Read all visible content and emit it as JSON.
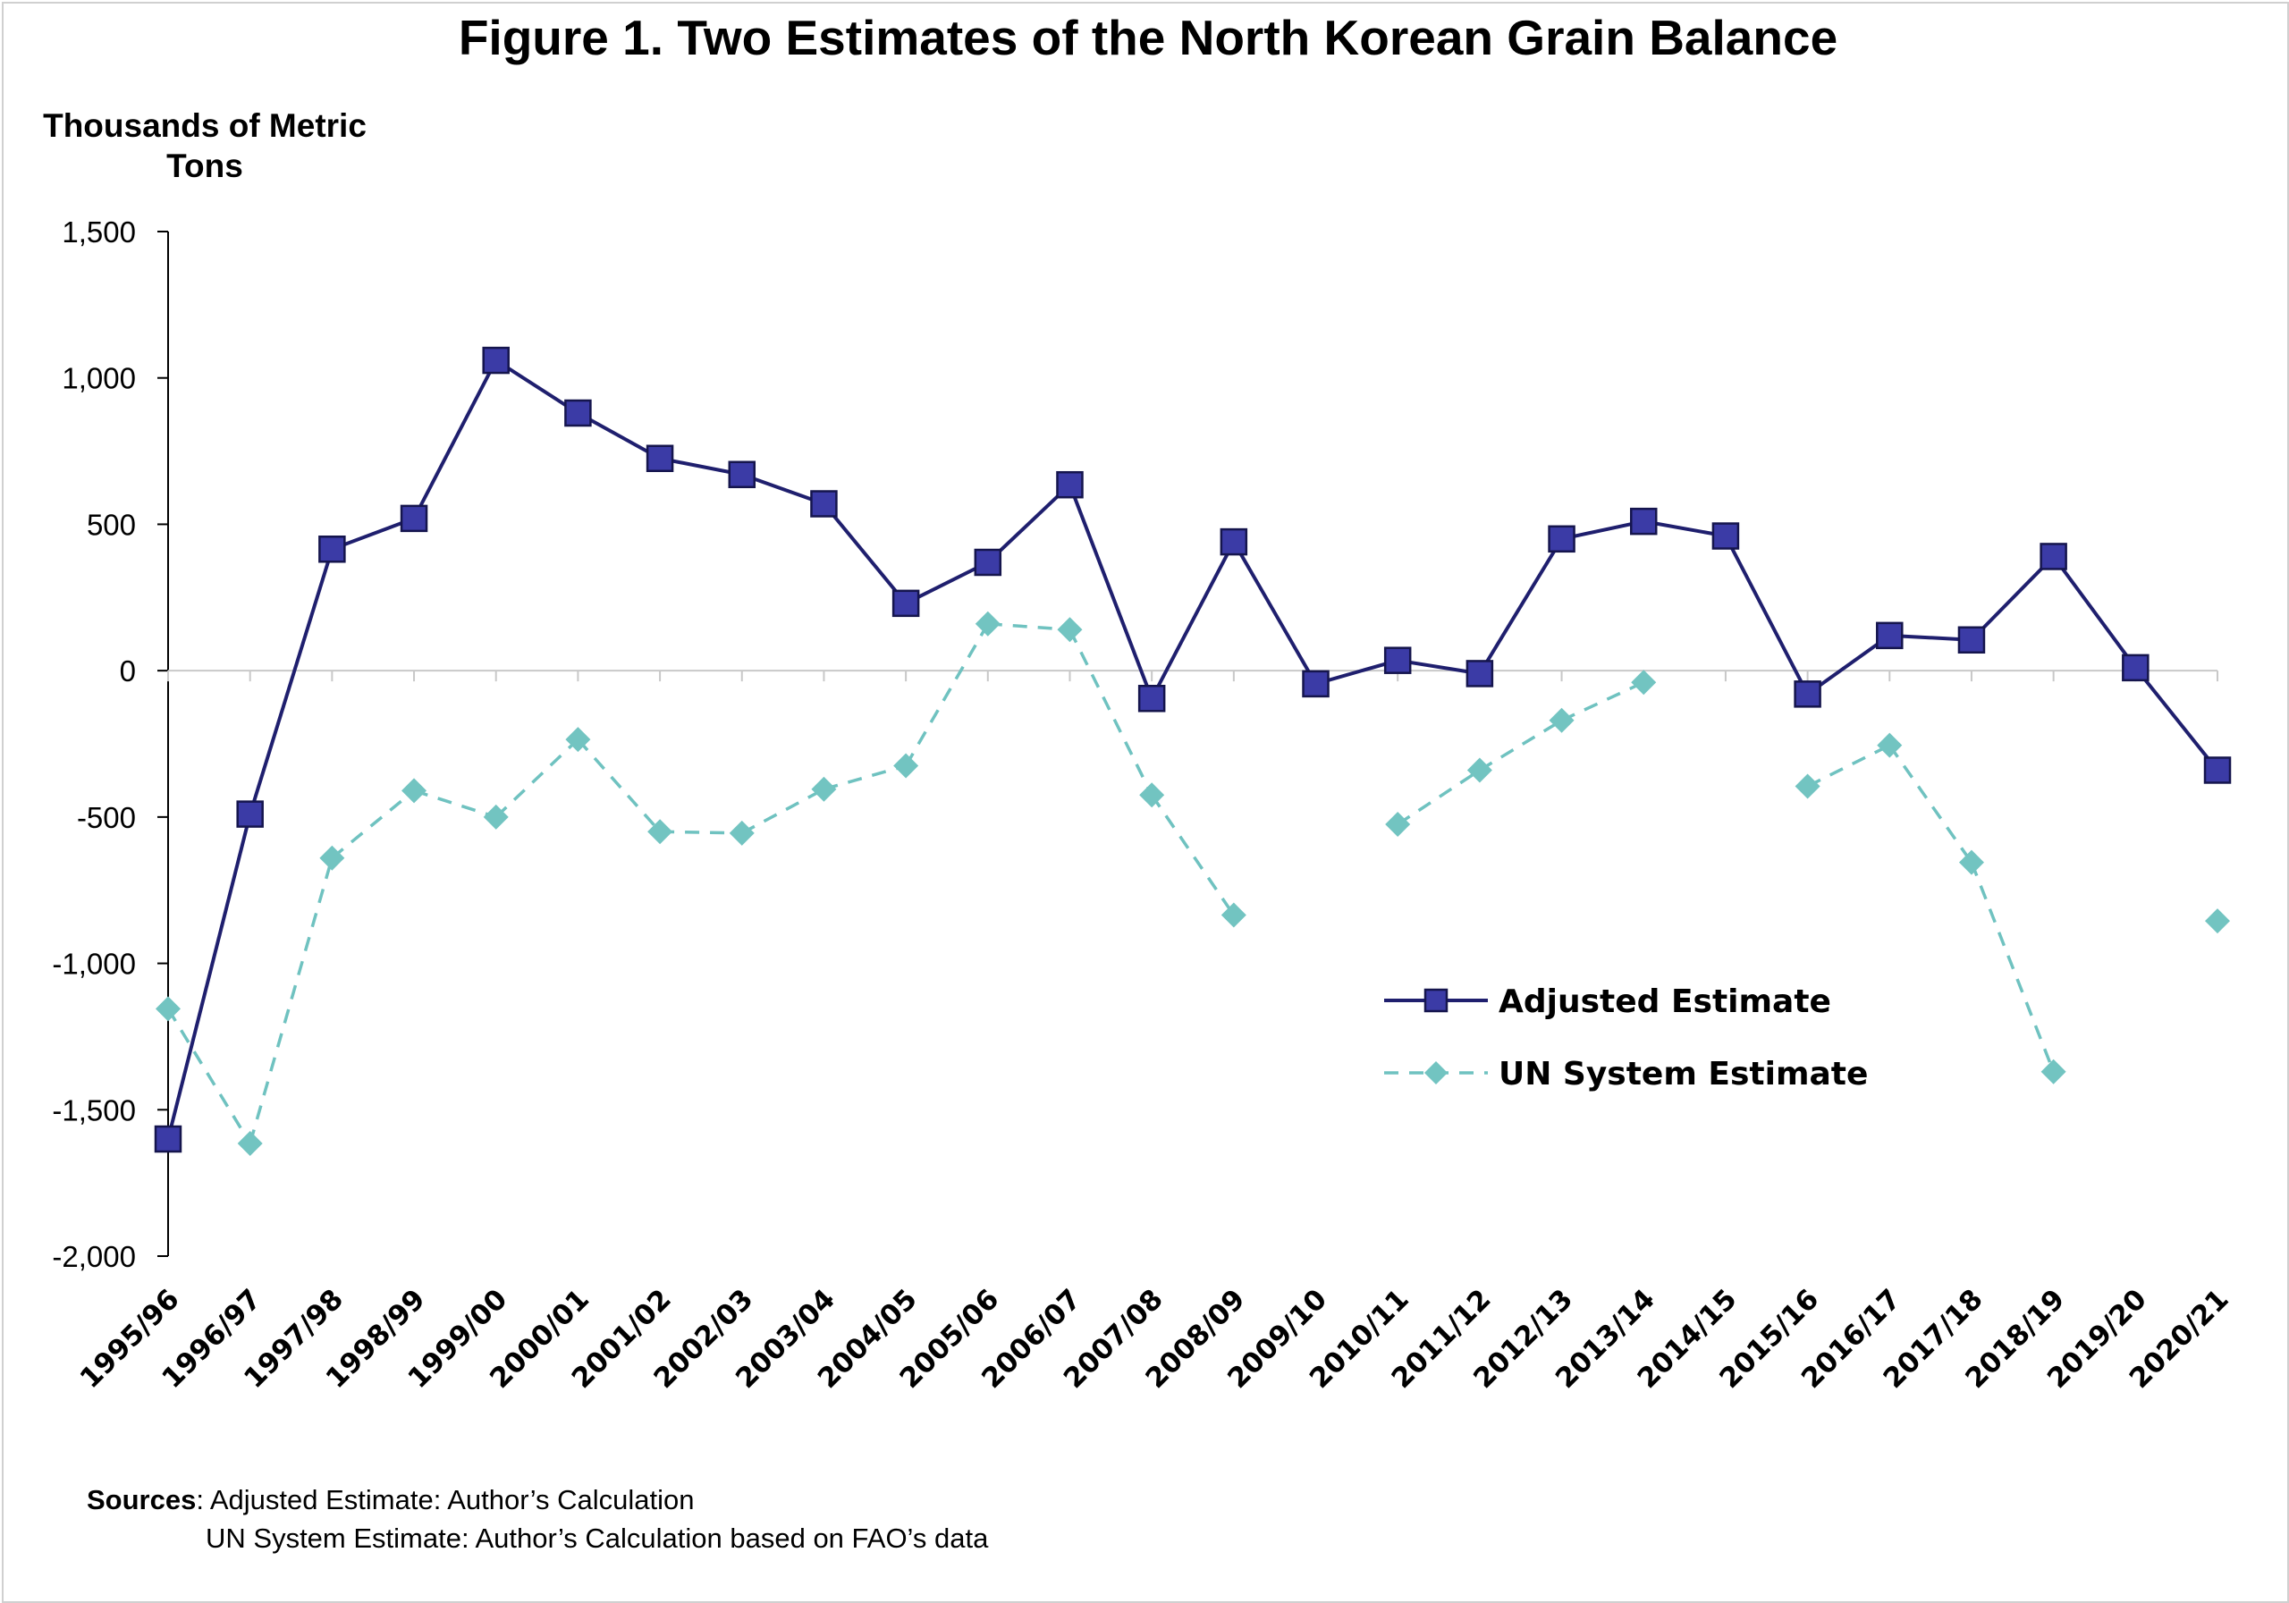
{
  "chart_data": {
    "type": "line",
    "title": "Figure 1. Two Estimates of the North Korean Grain Balance",
    "ylabel": "Thousands of Metric Tons",
    "xlabel": "",
    "ylim": [
      -2000,
      1500
    ],
    "ytick_step": 500,
    "ytick_labels": [
      "1,500",
      "1,000",
      "500",
      "0",
      "-500",
      "-1,000",
      "-1,500",
      "-2,000"
    ],
    "categories": [
      "1995/96",
      "1996/97",
      "1997/98",
      "1998/99",
      "1999/00",
      "2000/01",
      "2001/02",
      "2002/03",
      "2003/04",
      "2004/05",
      "2005/06",
      "2006/07",
      "2007/08",
      "2008/09",
      "2009/10",
      "2010/11",
      "2011/12",
      "2012/13",
      "2013/14",
      "2014/15",
      "2015/16",
      "2016/17",
      "2017/18",
      "2018/19",
      "2019/20",
      "2020/21"
    ],
    "series": [
      {
        "name": "Adjusted Estimate",
        "color": "#1f1f6e",
        "marker_color": "#3b3ba6",
        "marker": "square",
        "line": "solid",
        "values": [
          -1600,
          -490,
          415,
          520,
          1060,
          880,
          725,
          670,
          570,
          230,
          370,
          635,
          -95,
          440,
          -45,
          35,
          -10,
          450,
          510,
          460,
          -80,
          120,
          105,
          390,
          10,
          -340
        ]
      },
      {
        "name": "UN System Estimate",
        "color": "#6fc2c0",
        "marker_color": "#72c4c1",
        "marker": "diamond",
        "line": "dashed",
        "values": [
          -1155,
          -1615,
          -640,
          -410,
          -500,
          -235,
          -550,
          -555,
          -405,
          -325,
          160,
          140,
          -425,
          -835,
          null,
          -525,
          -340,
          -170,
          -40,
          null,
          -395,
          -255,
          -655,
          -1370,
          null,
          -855
        ]
      }
    ],
    "legend_position": "right-center",
    "grid": false
  },
  "sources": {
    "label": "Sources",
    "line1": ": Adjusted Estimate: Author’s Calculation",
    "line2": "UN System Estimate: Author’s Calculation based on FAO’s data"
  }
}
